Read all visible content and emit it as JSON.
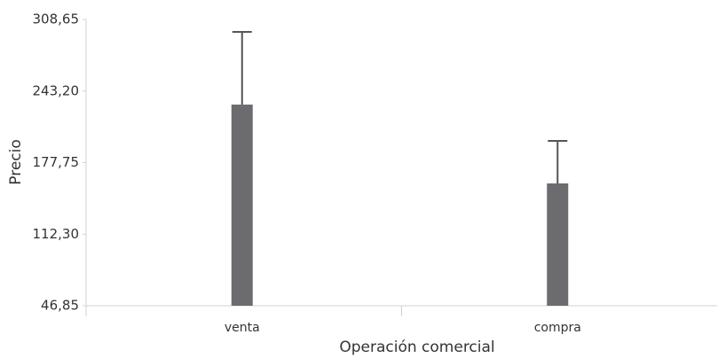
{
  "chart_data": {
    "type": "bar",
    "x_label": "Operación comercial",
    "y_label": "Precio",
    "categories": [
      "venta",
      "compra"
    ],
    "values": [
      230.8,
      158.7
    ],
    "errors": [
      66.5,
      38.9
    ],
    "color": "#6b6b70",
    "error_color": "#555555",
    "ylim": [
      46.85,
      308.65
    ],
    "yticks": [
      {
        "value": 46.85,
        "label": "46,85"
      },
      {
        "value": 112.3,
        "label": "112,30"
      },
      {
        "value": 177.75,
        "label": "177,75"
      },
      {
        "value": 243.2,
        "label": "243,20"
      },
      {
        "value": 308.65,
        "label": "308,65"
      }
    ],
    "grid": false
  }
}
